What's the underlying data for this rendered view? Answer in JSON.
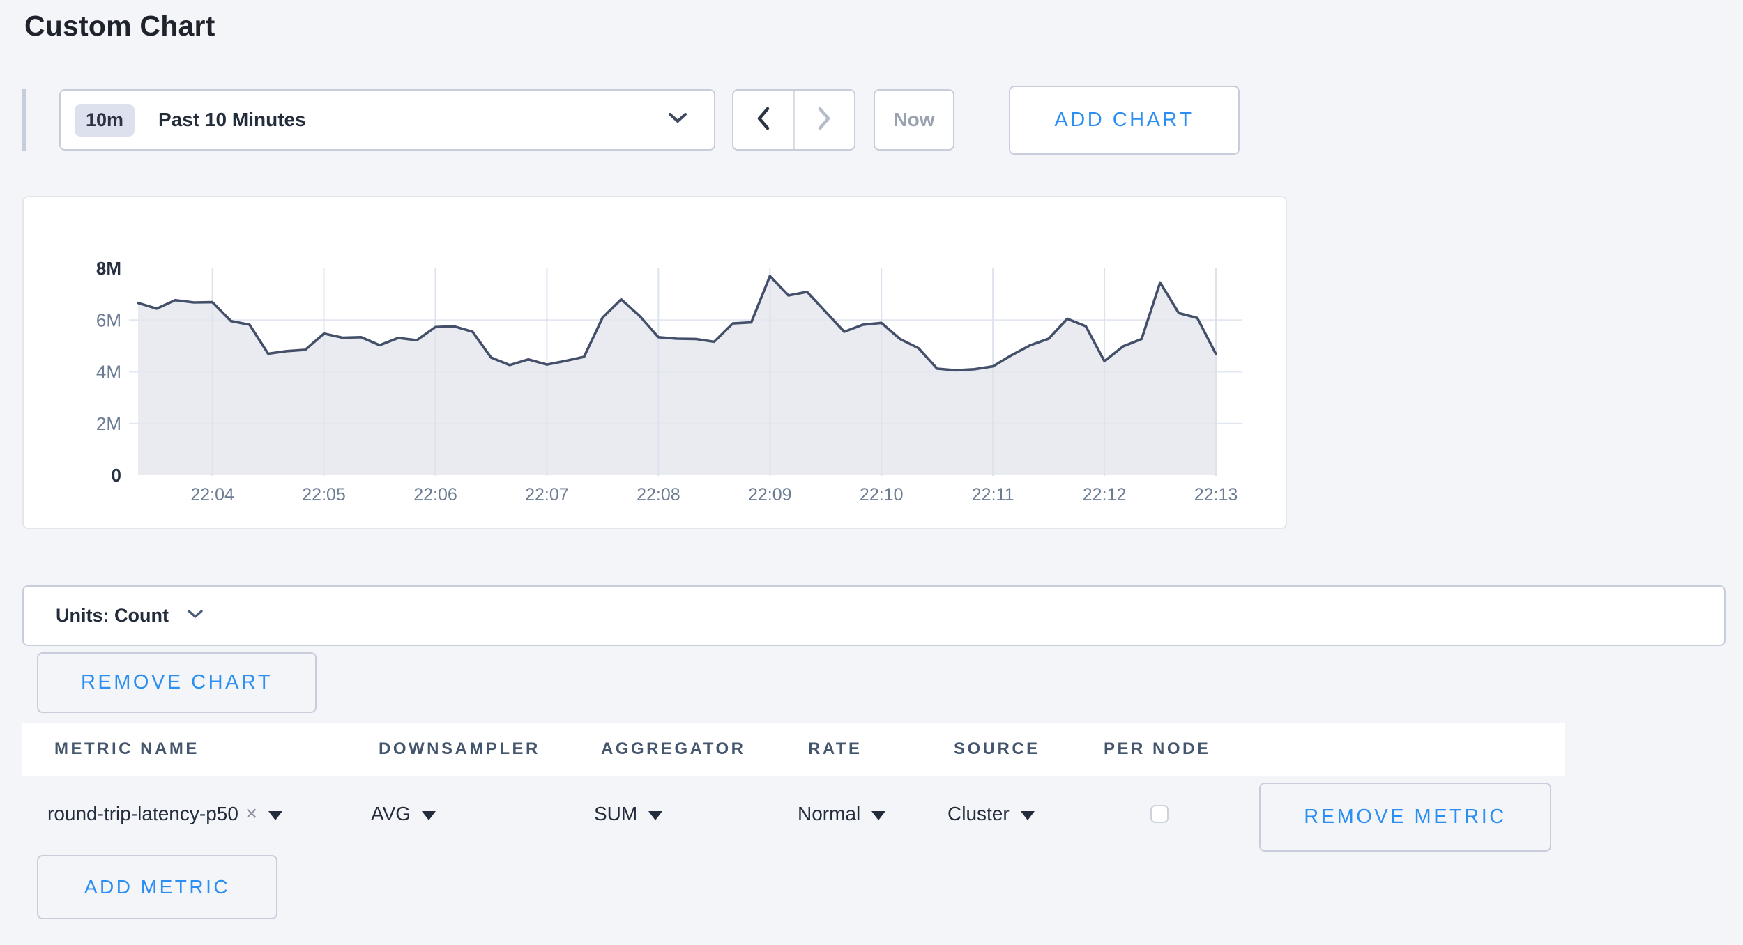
{
  "page": {
    "title": "Custom Chart"
  },
  "toolbar": {
    "range_badge": "10m",
    "range_label": "Past 10 Minutes",
    "now_label": "Now",
    "add_chart_label": "ADD CHART",
    "prev_icon": "chevron-left",
    "next_icon": "chevron-right"
  },
  "chart_data": {
    "type": "area",
    "title": "",
    "xlabel": "",
    "ylabel": "",
    "unit": "count",
    "values_unit": "millions",
    "ylim_millions": [
      0,
      8
    ],
    "grid": true,
    "legend": "none",
    "line_color": "#44506a",
    "fill_color": "#e9ebf1",
    "series": [
      {
        "name": "round-trip-latency-p50",
        "values_in_millions": [
          6.66,
          6.44,
          6.77,
          6.68,
          6.69,
          5.96,
          5.82,
          4.7,
          4.8,
          4.85,
          5.48,
          5.32,
          5.34,
          5.03,
          5.31,
          5.22,
          5.73,
          5.76,
          5.55,
          4.55,
          4.26,
          4.48,
          4.28,
          4.42,
          4.58,
          6.1,
          6.8,
          6.15,
          5.34,
          5.28,
          5.27,
          5.16,
          5.87,
          5.91,
          7.7,
          6.95,
          7.09,
          6.32,
          5.55,
          5.82,
          5.89,
          5.27,
          4.91,
          4.12,
          4.06,
          4.1,
          4.21,
          4.64,
          5.02,
          5.28,
          6.05,
          5.76,
          4.41,
          4.98,
          5.27,
          7.45,
          6.27,
          6.08,
          4.69
        ]
      }
    ],
    "y_ticks": [
      {
        "label": "8M",
        "value_millions": 8,
        "emphasis": true,
        "grid": false
      },
      {
        "label": "6M",
        "value_millions": 6,
        "emphasis": false,
        "grid": true
      },
      {
        "label": "4M",
        "value_millions": 4,
        "emphasis": false,
        "grid": true
      },
      {
        "label": "2M",
        "value_millions": 2,
        "emphasis": false,
        "grid": true
      },
      {
        "label": "0",
        "value_millions": 0,
        "emphasis": true,
        "grid": false
      }
    ],
    "x_ticks": [
      {
        "label": "22:04",
        "point_index": 4
      },
      {
        "label": "22:05",
        "point_index": 10
      },
      {
        "label": "22:06",
        "point_index": 16
      },
      {
        "label": "22:07",
        "point_index": 22
      },
      {
        "label": "22:08",
        "point_index": 28
      },
      {
        "label": "22:09",
        "point_index": 34
      },
      {
        "label": "22:10",
        "point_index": 40
      },
      {
        "label": "22:11",
        "point_index": 46
      },
      {
        "label": "22:12",
        "point_index": 52
      },
      {
        "label": "22:13",
        "point_index": 58
      }
    ]
  },
  "units_bar": {
    "label": "Units: Count"
  },
  "remove_chart_label": "REMOVE CHART",
  "metric_table": {
    "columns": [
      "METRIC NAME",
      "DOWNSAMPLER",
      "AGGREGATOR",
      "RATE",
      "SOURCE",
      "PER NODE"
    ],
    "row": {
      "metric_name": "round-trip-latency-p50",
      "clear_icon": "×",
      "downsampler": "AVG",
      "aggregator": "SUM",
      "rate": "Normal",
      "source": "Cluster",
      "per_node_checked": false,
      "remove_label": "REMOVE METRIC"
    },
    "add_metric_label": "ADD METRIC"
  },
  "colors": {
    "accent_blue": "#2a8ef2",
    "chart_line": "#44506a",
    "chart_fill": "#e9ebf1",
    "grid_horizontal": "#e3e8f0",
    "grid_vertical": "#dde2ed",
    "tick_text": "#6b7c93",
    "tick_text_emphasis": "#26303f"
  }
}
